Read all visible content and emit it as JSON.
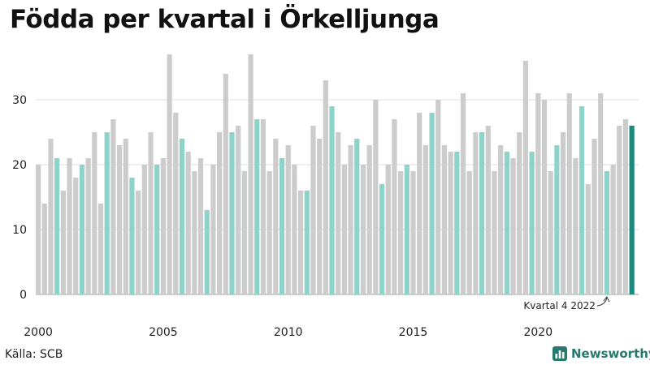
{
  "title": "Födda per kvartal i Örkelljunga",
  "source": "Källa: SCB",
  "logo": {
    "text": "Newsworthy",
    "icon": "bar-chart-icon",
    "color": "#27796f"
  },
  "colors": {
    "grey": "#cccccc",
    "q4": "#8dd3c9",
    "last": "#1a8a7c",
    "grid": "#dddddd"
  },
  "chart_data": {
    "type": "bar",
    "title": "Födda per kvartal i Örkelljunga",
    "xlabel": "",
    "ylabel": "",
    "ylim": [
      0,
      37
    ],
    "yticks": [
      0,
      10,
      20,
      30
    ],
    "xticks": [
      "2000",
      "2005",
      "2010",
      "2015",
      "2020"
    ],
    "start_year": 2000,
    "grid": true,
    "values": [
      20,
      14,
      24,
      21,
      16,
      21,
      18,
      20,
      21,
      25,
      14,
      25,
      27,
      23,
      24,
      18,
      16,
      20,
      25,
      20,
      21,
      37,
      28,
      24,
      22,
      19,
      21,
      13,
      20,
      25,
      34,
      25,
      26,
      19,
      37,
      27,
      27,
      19,
      24,
      21,
      23,
      20,
      16,
      16,
      26,
      24,
      33,
      29,
      25,
      20,
      23,
      24,
      20,
      23,
      30,
      17,
      20,
      27,
      19,
      20,
      19,
      28,
      23,
      28,
      30,
      23,
      22,
      22,
      31,
      19,
      25,
      25,
      26,
      19,
      23,
      22,
      21,
      25,
      36,
      22,
      31,
      30,
      19,
      23,
      25,
      31,
      21,
      29,
      17,
      24,
      31,
      19,
      20,
      26,
      27,
      26
    ],
    "annotation": {
      "text": "Kvartal 4 2022",
      "index": 91
    }
  }
}
